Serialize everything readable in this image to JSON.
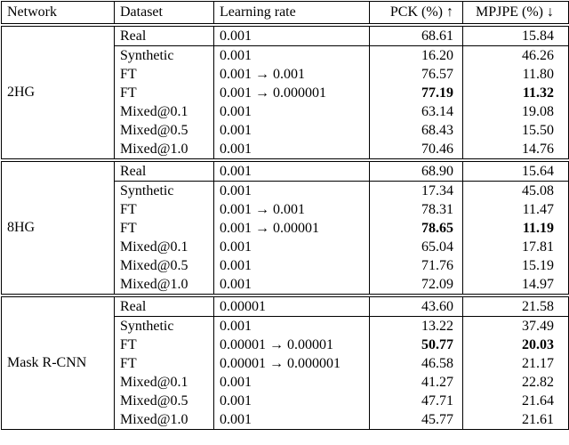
{
  "header": [
    "Network",
    "Dataset",
    "Learning rate",
    "PCK (%) ↑",
    "MPJPE (%) ↓"
  ],
  "groups": [
    {
      "network": "2HG",
      "bold_row": 3,
      "rows": [
        [
          "Real",
          "0.001",
          "68.61",
          "15.84"
        ],
        [
          "Synthetic",
          "0.001",
          "16.20",
          "46.26"
        ],
        [
          "FT",
          "0.001 → 0.001",
          "76.57",
          "11.80"
        ],
        [
          "FT",
          "0.001 → 0.000001",
          "77.19",
          "11.32"
        ],
        [
          "Mixed@0.1",
          "0.001",
          "63.14",
          "19.08"
        ],
        [
          "Mixed@0.5",
          "0.001",
          "68.43",
          "15.50"
        ],
        [
          "Mixed@1.0",
          "0.001",
          "70.46",
          "14.76"
        ]
      ]
    },
    {
      "network": "8HG",
      "bold_row": 3,
      "rows": [
        [
          "Real",
          "0.001",
          "68.90",
          "15.64"
        ],
        [
          "Synthetic",
          "0.001",
          "17.34",
          "45.08"
        ],
        [
          "FT",
          "0.001 → 0.001",
          "78.31",
          "11.47"
        ],
        [
          "FT",
          "0.001 → 0.00001",
          "78.65",
          "11.19"
        ],
        [
          "Mixed@0.1",
          "0.001",
          "65.04",
          "17.81"
        ],
        [
          "Mixed@0.5",
          "0.001",
          "71.76",
          "15.19"
        ],
        [
          "Mixed@1.0",
          "0.001",
          "72.09",
          "14.97"
        ]
      ]
    },
    {
      "network": "Mask R-CNN",
      "bold_row": 2,
      "rows": [
        [
          "Real",
          "0.00001",
          "43.60",
          "21.58"
        ],
        [
          "Synthetic",
          "0.001",
          "13.22",
          "37.49"
        ],
        [
          "FT",
          "0.00001 → 0.00001",
          "50.77",
          "20.03"
        ],
        [
          "FT",
          "0.00001 → 0.000001",
          "46.58",
          "21.17"
        ],
        [
          "Mixed@0.1",
          "0.001",
          "41.27",
          "22.82"
        ],
        [
          "Mixed@0.5",
          "0.001",
          "47.71",
          "21.64"
        ],
        [
          "Mixed@1.0",
          "0.001",
          "45.77",
          "21.61"
        ]
      ]
    }
  ]
}
